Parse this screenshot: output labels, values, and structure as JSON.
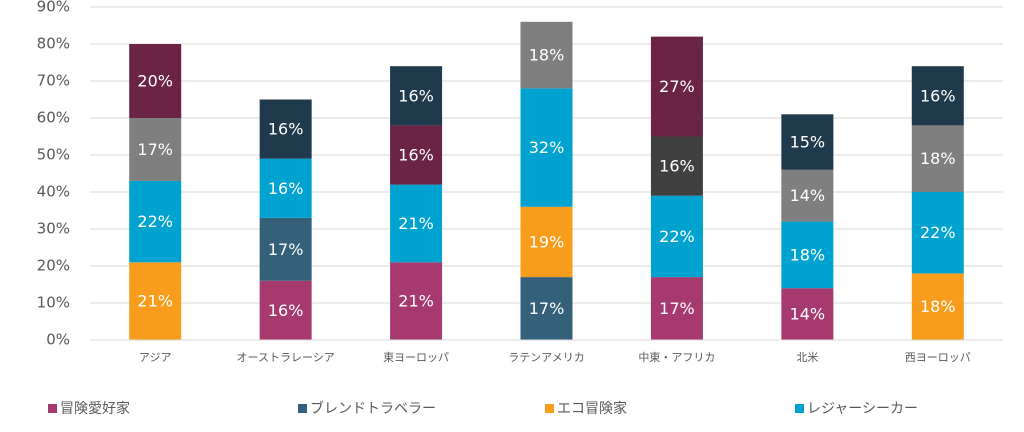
{
  "chart_data": {
    "type": "stacked_bar",
    "categories": [
      "アジア",
      "オーストラレーシア",
      "東ヨーロッパ",
      "ラテンアメリカ",
      "中東・アフリカ",
      "北米",
      "西ヨーロッパ"
    ],
    "series": [
      {
        "name": "冒険愛好家",
        "color": "#a63a6e",
        "values": [
          null,
          16,
          21,
          null,
          17,
          14,
          null
        ],
        "value_labels": [
          null,
          "16%",
          "21%",
          null,
          "17%",
          "14%",
          null
        ]
      },
      {
        "name": "ブレンドトラベラー",
        "color": "#35607a",
        "values": [
          null,
          17,
          null,
          17,
          null,
          null,
          null
        ],
        "value_labels": [
          null,
          "17%",
          null,
          "17%",
          null,
          null,
          null
        ]
      },
      {
        "name": "エコ冒険家",
        "color": "#f89c1c",
        "values": [
          21,
          null,
          null,
          19,
          null,
          null,
          18
        ],
        "value_labels": [
          "21%",
          null,
          null,
          "19%",
          null,
          null,
          "18%"
        ]
      },
      {
        "name": "レジャーシーカー",
        "color": "#00a2cf",
        "values": [
          22,
          16,
          21,
          32,
          22,
          18,
          22
        ],
        "value_labels": [
          "22%",
          "16%",
          "21%",
          "32%",
          "22%",
          "18%",
          "22%"
        ]
      },
      {
        "color": "#7f7f7f",
        "values": [
          17,
          null,
          null,
          18,
          null,
          14,
          18
        ],
        "value_labels": [
          "17%",
          null,
          null,
          "18%",
          null,
          "14%",
          "18%"
        ]
      },
      {
        "color": "#404040",
        "values": [
          null,
          null,
          null,
          null,
          16,
          null,
          null
        ],
        "value_labels": [
          null,
          null,
          null,
          null,
          "16%",
          null,
          null
        ]
      },
      {
        "color": "#6b2346",
        "values": [
          20,
          null,
          16,
          null,
          27,
          null,
          null
        ],
        "value_labels": [
          "20%",
          null,
          "16%",
          null,
          "27%",
          null,
          null
        ]
      },
      {
        "color": "#1f3a4d",
        "values": [
          null,
          16,
          16,
          null,
          null,
          15,
          16
        ],
        "value_labels": [
          null,
          "16%",
          "16%",
          null,
          null,
          "15%",
          "16%"
        ]
      }
    ],
    "ylim": [
      0,
      90
    ],
    "yticks": [
      {
        "value": 0,
        "label": "0%"
      },
      {
        "value": 10,
        "label": "10%"
      },
      {
        "value": 20,
        "label": "20%"
      },
      {
        "value": 30,
        "label": "30%"
      },
      {
        "value": 40,
        "label": "40%"
      },
      {
        "value": 50,
        "label": "50%"
      },
      {
        "value": 60,
        "label": "60%"
      },
      {
        "value": 70,
        "label": "70%"
      },
      {
        "value": 80,
        "label": "80%"
      },
      {
        "value": 90,
        "label": "90%"
      }
    ],
    "grid": true,
    "legend": "bottom"
  }
}
